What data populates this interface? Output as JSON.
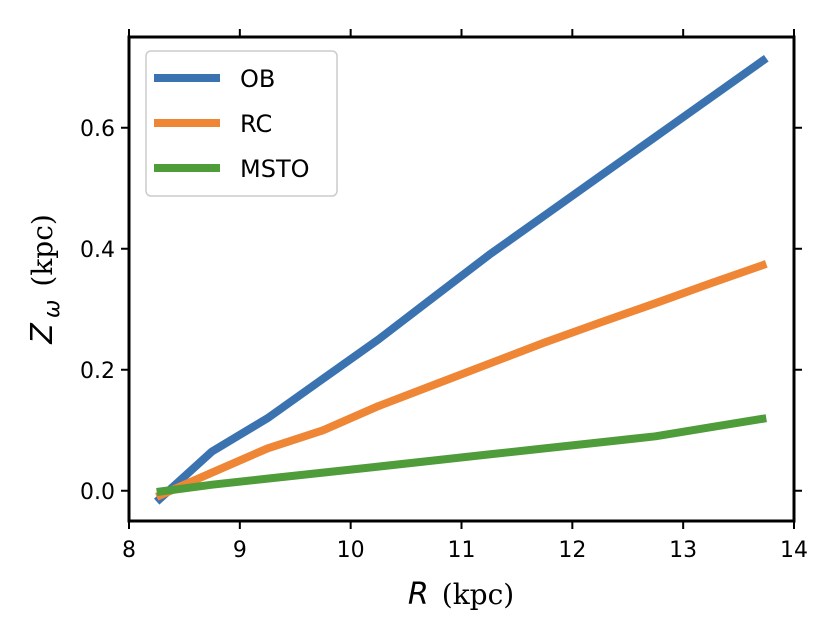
{
  "chart_data": {
    "type": "line",
    "xlabel_symbol": "R",
    "xlabel_unit": "(kpc)",
    "ylabel_symbol": "Z",
    "ylabel_subscript": "ω",
    "ylabel_unit": "(kpc)",
    "xlim": [
      8.0,
      14.0
    ],
    "ylim": [
      -0.05,
      0.75
    ],
    "xticks": [
      8,
      9,
      10,
      11,
      12,
      13,
      14
    ],
    "xtick_labels": [
      "8",
      "9",
      "10",
      "11",
      "12",
      "13",
      "14"
    ],
    "yticks": [
      0.0,
      0.2,
      0.4,
      0.6
    ],
    "ytick_labels": [
      "0.0",
      "0.2",
      "0.4",
      "0.6"
    ],
    "legend_position": "top-left",
    "grid": false,
    "series": [
      {
        "name": "OB",
        "color": "#3b73b0",
        "x": [
          8.25,
          8.75,
          9.25,
          9.75,
          10.25,
          10.75,
          11.25,
          11.75,
          12.25,
          12.75,
          13.25,
          13.75
        ],
        "y": [
          -0.018,
          0.065,
          0.12,
          0.185,
          0.25,
          0.32,
          0.39,
          0.455,
          0.52,
          0.585,
          0.65,
          0.715
        ]
      },
      {
        "name": "RC",
        "color": "#ef8636",
        "x": [
          8.25,
          8.75,
          9.25,
          9.75,
          10.25,
          10.75,
          11.25,
          11.75,
          12.25,
          12.75,
          13.25,
          13.75
        ],
        "y": [
          -0.01,
          0.03,
          0.07,
          0.1,
          0.14,
          0.175,
          0.21,
          0.245,
          0.278,
          0.31,
          0.343,
          0.375
        ]
      },
      {
        "name": "MSTO",
        "color": "#4f9c3a",
        "x": [
          8.25,
          8.75,
          9.25,
          9.75,
          10.25,
          10.75,
          11.25,
          11.75,
          12.25,
          12.75,
          13.25,
          13.75
        ],
        "y": [
          -0.002,
          0.01,
          0.02,
          0.03,
          0.04,
          0.05,
          0.06,
          0.07,
          0.08,
          0.09,
          0.105,
          0.12
        ]
      }
    ]
  }
}
